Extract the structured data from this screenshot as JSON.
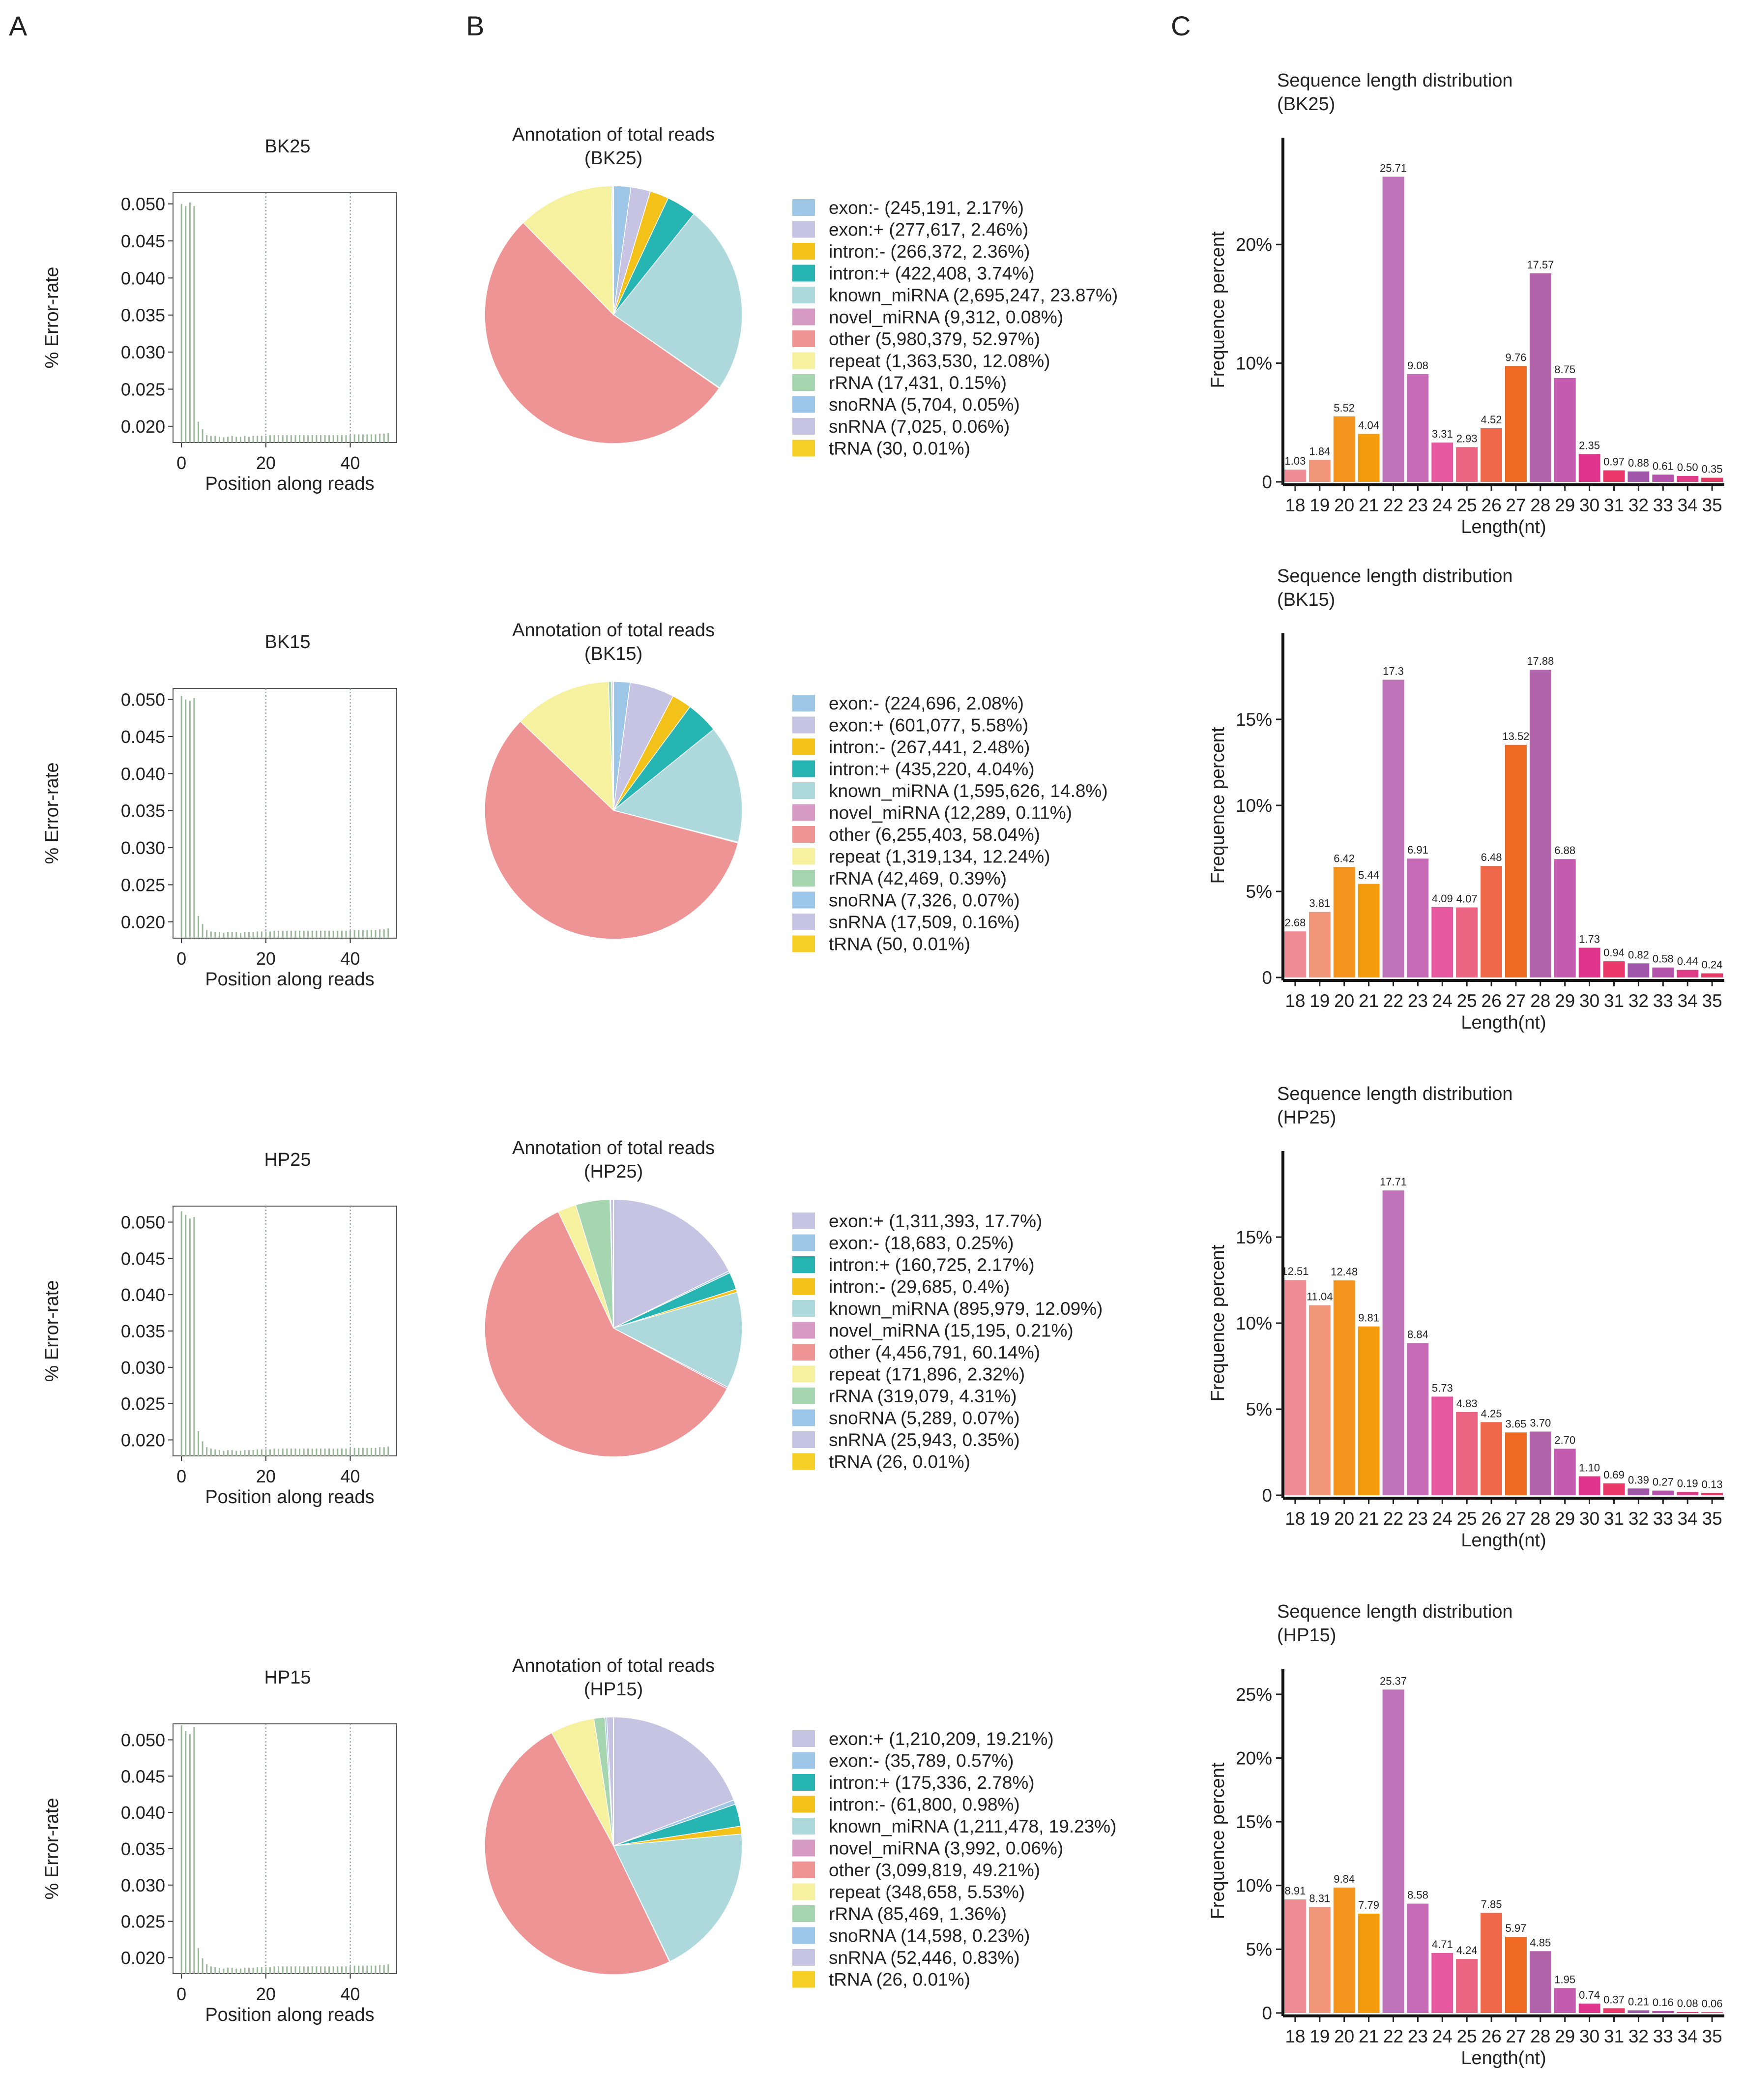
{
  "figure": {
    "panel_labels": [
      "A",
      "B",
      "C"
    ]
  },
  "colors": {
    "annotation": {
      "exon:-": "#9ec6e6",
      "exon:+": "#c7c3e2",
      "intron:-": "#f2c21b",
      "intron:+": "#27b5b4",
      "known_miRNA": "#add8dc",
      "novel_miRNA": "#d79ac4",
      "other": "#ee9494",
      "repeat": "#f6f19e",
      "rRNA": "#a5d6b0",
      "snoRNA": "#9cc5ea",
      "snRNA": "#c7c3e2",
      "tRNA": "#f5cf26"
    },
    "length_bars": [
      "#f08c96",
      "#f2967a",
      "#f5941c",
      "#f59c0e",
      "#bf73b9",
      "#c66ab8",
      "#e659a0",
      "#ec6582",
      "#ef6849",
      "#ee6a23",
      "#b163a9",
      "#c45bae",
      "#e0358d",
      "#ea3868",
      "#a157a9",
      "#b353a9",
      "#e03d88",
      "#e83a66"
    ],
    "error_line": "#9bb89a"
  },
  "chart_data": [
    {
      "type": "bar",
      "panel": "A",
      "sample": "BK25",
      "title": "BK25",
      "xlabel": "Position along reads",
      "ylabel": "% Error-rate",
      "xticks": [
        "0",
        "20",
        "40"
      ],
      "yticks": [
        "0.050",
        "0.045",
        "0.040",
        "0.035",
        "0.030",
        "0.025",
        "0.020"
      ],
      "xlim": [
        -2,
        51
      ],
      "ylim": [
        0.0178,
        0.0515
      ],
      "x": [
        0,
        1,
        2,
        3,
        4,
        5,
        6,
        7,
        8,
        9,
        10,
        11,
        12,
        13,
        14,
        15,
        16,
        17,
        18,
        19,
        20,
        21,
        22,
        23,
        24,
        25,
        26,
        27,
        28,
        29,
        30,
        31,
        32,
        33,
        34,
        35,
        36,
        37,
        38,
        39,
        40,
        41,
        42,
        43,
        44,
        45,
        46,
        47,
        48,
        49
      ],
      "values": [
        0.05,
        0.0497,
        0.0502,
        0.0497,
        0.0206,
        0.0196,
        0.0188,
        0.0187,
        0.0187,
        0.0186,
        0.0185,
        0.0186,
        0.0187,
        0.0186,
        0.0186,
        0.0187,
        0.0186,
        0.0187,
        0.0187,
        0.0187,
        0.0187,
        0.0188,
        0.0188,
        0.0188,
        0.0188,
        0.0188,
        0.0188,
        0.0188,
        0.0188,
        0.0188,
        0.0188,
        0.0188,
        0.0188,
        0.0188,
        0.0188,
        0.0188,
        0.0188,
        0.0188,
        0.0188,
        0.0188,
        0.0188,
        0.0189,
        0.0189,
        0.0189,
        0.0189,
        0.0189,
        0.0189,
        0.019,
        0.019,
        0.0191
      ],
      "vlines": [
        20,
        40
      ]
    },
    {
      "type": "pie",
      "panel": "B",
      "sample": "BK25",
      "title": "Annotation of total reads",
      "subtitle": "(BK25)",
      "labels": [
        "exon:-",
        "exon:+",
        "intron:-",
        "intron:+",
        "known_miRNA",
        "novel_miRNA",
        "other",
        "repeat",
        "rRNA",
        "snoRNA",
        "snRNA",
        "tRNA"
      ],
      "counts": [
        "245,191",
        "277,617",
        "266,372",
        "422,408",
        "2,695,247",
        "9,312",
        "5,980,379",
        "1,363,530",
        "17,431",
        "5,704",
        "7,025",
        "30"
      ],
      "percents": [
        2.17,
        2.46,
        2.36,
        3.74,
        23.87,
        0.08,
        52.97,
        12.08,
        0.15,
        0.05,
        0.06,
        0.01
      ],
      "legend": [
        "exon:-  (245,191, 2.17%)",
        "exon:+ (277,617, 2.46%)",
        "intron:- (266,372, 2.36%)",
        "intron:+ (422,408, 3.74%)",
        "known_miRNA (2,695,247, 23.87%)",
        "novel_miRNA (9,312, 0.08%)",
        "other (5,980,379, 52.97%)",
        "repeat (1,363,530, 12.08%)",
        "rRNA (17,431, 0.15%)",
        "snoRNA (5,704, 0.05%)",
        "snRNA (7,025, 0.06%)",
        "tRNA (30, 0.01%)"
      ]
    },
    {
      "type": "bar",
      "panel": "C",
      "sample": "BK25",
      "title": "Sequence length distribution",
      "subtitle": "(BK25)",
      "xlabel": "Length(nt)",
      "ylabel": "Frequence percent",
      "categories": [
        "18",
        "19",
        "20",
        "21",
        "22",
        "23",
        "24",
        "25",
        "26",
        "27",
        "28",
        "29",
        "30",
        "31",
        "32",
        "33",
        "34",
        "35"
      ],
      "values": [
        1.03,
        1.84,
        5.52,
        4.04,
        25.71,
        9.08,
        3.31,
        2.93,
        4.52,
        9.76,
        17.57,
        8.75,
        2.35,
        0.97,
        0.88,
        0.61,
        0.5,
        0.35
      ],
      "data_labels": [
        "1.03",
        "1.84",
        "5.52",
        "4.04",
        "25.71",
        "9.08",
        "3.31",
        "2.93",
        "4.52",
        "9.76",
        "17.57",
        "8.75",
        "2.35",
        "0.97",
        "0.88",
        "0.61",
        "0.50",
        "0.35"
      ],
      "ylim": [
        0,
        29
      ],
      "yticks": [
        0,
        10,
        20
      ],
      "ytick_labels": [
        "0",
        "10%",
        "20%"
      ]
    },
    {
      "type": "bar",
      "panel": "A",
      "sample": "BK15",
      "title": "BK15",
      "xlabel": "Position along reads",
      "ylabel": "% Error-rate",
      "xticks": [
        "0",
        "20",
        "40"
      ],
      "yticks": [
        "0.050",
        "0.045",
        "0.040",
        "0.035",
        "0.030",
        "0.025",
        "0.020"
      ],
      "xlim": [
        -2,
        51
      ],
      "ylim": [
        0.0178,
        0.0515
      ],
      "x": [
        0,
        1,
        2,
        3,
        4,
        5,
        6,
        7,
        8,
        9,
        10,
        11,
        12,
        13,
        14,
        15,
        16,
        17,
        18,
        19,
        20,
        21,
        22,
        23,
        24,
        25,
        26,
        27,
        28,
        29,
        30,
        31,
        32,
        33,
        34,
        35,
        36,
        37,
        38,
        39,
        40,
        41,
        42,
        43,
        44,
        45,
        46,
        47,
        48,
        49
      ],
      "values": [
        0.0505,
        0.05,
        0.0498,
        0.0502,
        0.0208,
        0.0197,
        0.0189,
        0.0187,
        0.0186,
        0.0186,
        0.0185,
        0.0186,
        0.0186,
        0.0186,
        0.0185,
        0.0186,
        0.0186,
        0.0186,
        0.0187,
        0.0187,
        0.0187,
        0.0187,
        0.0188,
        0.0188,
        0.0188,
        0.0188,
        0.0188,
        0.0188,
        0.0188,
        0.0188,
        0.0188,
        0.0188,
        0.0188,
        0.0188,
        0.0188,
        0.0188,
        0.0188,
        0.0188,
        0.0188,
        0.0188,
        0.0188,
        0.0189,
        0.0189,
        0.0189,
        0.0189,
        0.0189,
        0.0189,
        0.019,
        0.019,
        0.0191
      ],
      "vlines": [
        20,
        40
      ]
    },
    {
      "type": "pie",
      "panel": "B",
      "sample": "BK15",
      "title": "Annotation of total reads",
      "subtitle": "(BK15)",
      "labels": [
        "exon:-",
        "exon:+",
        "intron:-",
        "intron:+",
        "known_miRNA",
        "novel_miRNA",
        "other",
        "repeat",
        "rRNA",
        "snoRNA",
        "snRNA",
        "tRNA"
      ],
      "counts": [
        "224,696",
        "601,077",
        "267,441",
        "435,220",
        "1,595,626",
        "12,289",
        "6,255,403",
        "1,319,134",
        "42,469",
        "7,326",
        "17,509",
        "50"
      ],
      "percents": [
        2.08,
        5.58,
        2.48,
        4.04,
        14.8,
        0.11,
        58.04,
        12.24,
        0.39,
        0.07,
        0.16,
        0.01
      ],
      "legend": [
        "exon:- (224,696, 2.08%)",
        "exon:+ (601,077, 5.58%)",
        "intron:- (267,441, 2.48%)",
        "intron:+ (435,220, 4.04%)",
        "known_miRNA (1,595,626, 14.8%)",
        "novel_miRNA (12,289, 0.11%)",
        "other (6,255,403, 58.04%)",
        "repeat (1,319,134, 12.24%)",
        "rRNA (42,469, 0.39%)",
        "snoRNA (7,326, 0.07%)",
        "snRNA (17,509, 0.16%)",
        "tRNA (50, 0.01%)"
      ]
    },
    {
      "type": "bar",
      "panel": "C",
      "sample": "BK15",
      "title": "Sequence length distribution",
      "subtitle": "(BK15)",
      "xlabel": "Length(nt)",
      "ylabel": "Frequence percent",
      "categories": [
        "18",
        "19",
        "20",
        "21",
        "22",
        "23",
        "24",
        "25",
        "26",
        "27",
        "28",
        "29",
        "30",
        "31",
        "32",
        "33",
        "34",
        "35"
      ],
      "values": [
        2.68,
        3.81,
        6.42,
        5.44,
        17.3,
        6.91,
        4.09,
        4.07,
        6.48,
        13.52,
        17.88,
        6.88,
        1.73,
        0.94,
        0.82,
        0.58,
        0.44,
        0.24
      ],
      "data_labels": [
        "2.68",
        "3.81",
        "6.42",
        "5.44",
        "17.3",
        "6.91",
        "4.09",
        "4.07",
        "6.48",
        "13.52",
        "17.88",
        "6.88",
        "1.73",
        "0.94",
        "0.82",
        "0.58",
        "0.44",
        "0.24"
      ],
      "ylim": [
        0,
        20
      ],
      "yticks": [
        0,
        5,
        10,
        15
      ],
      "ytick_labels": [
        "0",
        "5%",
        "10%",
        "15%"
      ]
    },
    {
      "type": "bar",
      "panel": "A",
      "sample": "HP25",
      "title": "HP25",
      "xlabel": "Position along reads",
      "ylabel": "% Error-rate",
      "xticks": [
        "0",
        "20",
        "40"
      ],
      "yticks": [
        "0.050",
        "0.045",
        "0.040",
        "0.035",
        "0.030",
        "0.025",
        "0.020"
      ],
      "xlim": [
        -2,
        51
      ],
      "ylim": [
        0.0178,
        0.0522
      ],
      "x": [
        0,
        1,
        2,
        3,
        4,
        5,
        6,
        7,
        8,
        9,
        10,
        11,
        12,
        13,
        14,
        15,
        16,
        17,
        18,
        19,
        20,
        21,
        22,
        23,
        24,
        25,
        26,
        27,
        28,
        29,
        30,
        31,
        32,
        33,
        34,
        35,
        36,
        37,
        38,
        39,
        40,
        41,
        42,
        43,
        44,
        45,
        46,
        47,
        48,
        49
      ],
      "values": [
        0.0515,
        0.051,
        0.0505,
        0.0507,
        0.0212,
        0.0198,
        0.019,
        0.0188,
        0.0187,
        0.0186,
        0.0185,
        0.0186,
        0.0186,
        0.0185,
        0.0185,
        0.0186,
        0.0186,
        0.0186,
        0.0187,
        0.0187,
        0.0187,
        0.0187,
        0.0188,
        0.0188,
        0.0188,
        0.0188,
        0.0188,
        0.0188,
        0.0188,
        0.0188,
        0.0188,
        0.0188,
        0.0188,
        0.0188,
        0.0188,
        0.0188,
        0.0188,
        0.0188,
        0.0188,
        0.0188,
        0.0188,
        0.0189,
        0.0189,
        0.0189,
        0.0189,
        0.0189,
        0.0189,
        0.019,
        0.019,
        0.0191
      ],
      "vlines": [
        20,
        40
      ]
    },
    {
      "type": "pie",
      "panel": "B",
      "sample": "HP25",
      "title": "Annotation of total reads",
      "subtitle": "(HP25)",
      "labels": [
        "exon:+",
        "exon:-",
        "intron:+",
        "intron:-",
        "known_miRNA",
        "novel_miRNA",
        "other",
        "repeat",
        "rRNA",
        "snoRNA",
        "snRNA",
        "tRNA"
      ],
      "counts": [
        "1,311,393",
        "18,683",
        "160,725",
        "29,685",
        "895,979",
        "15,195",
        "4,456,791",
        "171,896",
        "319,079",
        "5,289",
        "25,943",
        "26"
      ],
      "percents": [
        17.7,
        0.25,
        2.17,
        0.4,
        12.09,
        0.21,
        60.14,
        2.32,
        4.31,
        0.07,
        0.35,
        0.01
      ],
      "legend": [
        "exon:+ (1,311,393, 17.7%)",
        "exon:- (18,683, 0.25%)",
        "intron:+ (160,725, 2.17%)",
        "intron:- (29,685, 0.4%)",
        "known_miRNA (895,979, 12.09%)",
        "novel_miRNA (15,195, 0.21%)",
        "other (4,456,791, 60.14%)",
        "repeat (171,896, 2.32%)",
        "rRNA (319,079, 4.31%)",
        "snoRNA (5,289, 0.07%)",
        "snRNA (25,943, 0.35%)",
        "tRNA (26, 0.01%)"
      ]
    },
    {
      "type": "bar",
      "panel": "C",
      "sample": "HP25",
      "title": "Sequence length distribution",
      "subtitle": "(HP25)",
      "xlabel": "Length(nt)",
      "ylabel": "Frequence percent",
      "categories": [
        "18",
        "19",
        "20",
        "21",
        "22",
        "23",
        "24",
        "25",
        "26",
        "27",
        "28",
        "29",
        "30",
        "31",
        "32",
        "33",
        "34",
        "35"
      ],
      "values": [
        12.51,
        11.04,
        12.48,
        9.81,
        17.71,
        8.84,
        5.73,
        4.83,
        4.25,
        3.65,
        3.7,
        2.7,
        1.1,
        0.69,
        0.39,
        0.27,
        0.19,
        0.13
      ],
      "data_labels": [
        "12.51",
        "11.04",
        "12.48",
        "9.81",
        "17.71",
        "8.84",
        "5.73",
        "4.83",
        "4.25",
        "3.65",
        "3.70",
        "2.70",
        "1.10",
        "0.69",
        "0.39",
        "0.27",
        "0.19",
        "0.13"
      ],
      "ylim": [
        0,
        20
      ],
      "yticks": [
        0,
        5,
        10,
        15
      ],
      "ytick_labels": [
        "0",
        "5%",
        "10%",
        "15%"
      ]
    },
    {
      "type": "bar",
      "panel": "A",
      "sample": "HP15",
      "title": "HP15",
      "xlabel": "Position along reads",
      "ylabel": "% Error-rate",
      "xticks": [
        "0",
        "20",
        "40"
      ],
      "yticks": [
        "0.050",
        "0.045",
        "0.040",
        "0.035",
        "0.030",
        "0.025",
        "0.020"
      ],
      "xlim": [
        -2,
        51
      ],
      "ylim": [
        0.0178,
        0.0522
      ],
      "x": [
        0,
        1,
        2,
        3,
        4,
        5,
        6,
        7,
        8,
        9,
        10,
        11,
        12,
        13,
        14,
        15,
        16,
        17,
        18,
        19,
        20,
        21,
        22,
        23,
        24,
        25,
        26,
        27,
        28,
        29,
        30,
        31,
        32,
        33,
        34,
        35,
        36,
        37,
        38,
        39,
        40,
        41,
        42,
        43,
        44,
        45,
        46,
        47,
        48,
        49
      ],
      "values": [
        0.052,
        0.0512,
        0.0508,
        0.0518,
        0.0213,
        0.0199,
        0.0191,
        0.0188,
        0.0187,
        0.0186,
        0.0185,
        0.0186,
        0.0186,
        0.0185,
        0.0185,
        0.0186,
        0.0186,
        0.0186,
        0.0187,
        0.0187,
        0.0187,
        0.0187,
        0.0188,
        0.0188,
        0.0188,
        0.0188,
        0.0188,
        0.0188,
        0.0188,
        0.0188,
        0.0188,
        0.0188,
        0.0188,
        0.0188,
        0.0188,
        0.0188,
        0.0188,
        0.0188,
        0.0188,
        0.0188,
        0.0188,
        0.0189,
        0.0189,
        0.0189,
        0.0189,
        0.0189,
        0.0189,
        0.019,
        0.019,
        0.0191
      ],
      "vlines": [
        20,
        40
      ]
    },
    {
      "type": "pie",
      "panel": "B",
      "sample": "HP15",
      "title": "Annotation of total reads",
      "subtitle": "(HP15)",
      "labels": [
        "exon:+",
        "exon:-",
        "intron:+",
        "intron:-",
        "known_miRNA",
        "novel_miRNA",
        "other",
        "repeat",
        "rRNA",
        "snoRNA",
        "snRNA",
        "tRNA"
      ],
      "counts": [
        "1,210,209",
        "35,789",
        "175,336",
        "61,800",
        "1,211,478",
        "3,992",
        "3,099,819",
        "348,658",
        "85,469",
        "14,598",
        "52,446",
        "26"
      ],
      "percents": [
        19.21,
        0.57,
        2.78,
        0.98,
        19.23,
        0.06,
        49.21,
        5.53,
        1.36,
        0.23,
        0.83,
        0.01
      ],
      "legend": [
        "exon:+ (1,210,209, 19.21%)",
        "exon:- (35,789, 0.57%)",
        "intron:+ (175,336, 2.78%)",
        "intron:- (61,800, 0.98%)",
        "known_miRNA (1,211,478, 19.23%)",
        "novel_miRNA (3,992, 0.06%)",
        "other (3,099,819, 49.21%)",
        "repeat (348,658, 5.53%)",
        "rRNA (85,469, 1.36%)",
        "snoRNA (14,598, 0.23%)",
        "snRNA (52,446, 0.83%)",
        "tRNA (26, 0.01%)"
      ]
    },
    {
      "type": "bar",
      "panel": "C",
      "sample": "HP15",
      "title": "Sequence length distribution",
      "subtitle": "(HP15)",
      "xlabel": "Length(nt)",
      "ylabel": "Frequence percent",
      "categories": [
        "18",
        "19",
        "20",
        "21",
        "22",
        "23",
        "24",
        "25",
        "26",
        "27",
        "28",
        "29",
        "30",
        "31",
        "32",
        "33",
        "34",
        "35"
      ],
      "values": [
        8.91,
        8.31,
        9.84,
        7.79,
        25.37,
        8.58,
        4.71,
        4.24,
        7.85,
        5.97,
        4.85,
        1.95,
        0.74,
        0.37,
        0.21,
        0.16,
        0.08,
        0.06
      ],
      "data_labels": [
        "8.91",
        "8.31",
        "9.84",
        "7.79",
        "25.37",
        "8.58",
        "4.71",
        "4.24",
        "7.85",
        "5.97",
        "4.85",
        "1.95",
        "0.74",
        "0.37",
        "0.21",
        "0.16",
        "0.08",
        "0.06"
      ],
      "ylim": [
        0,
        27
      ],
      "yticks": [
        0,
        5,
        10,
        15,
        20,
        25
      ],
      "ytick_labels": [
        "0",
        "5%",
        "10%",
        "15%",
        "20%",
        "25%"
      ]
    }
  ]
}
